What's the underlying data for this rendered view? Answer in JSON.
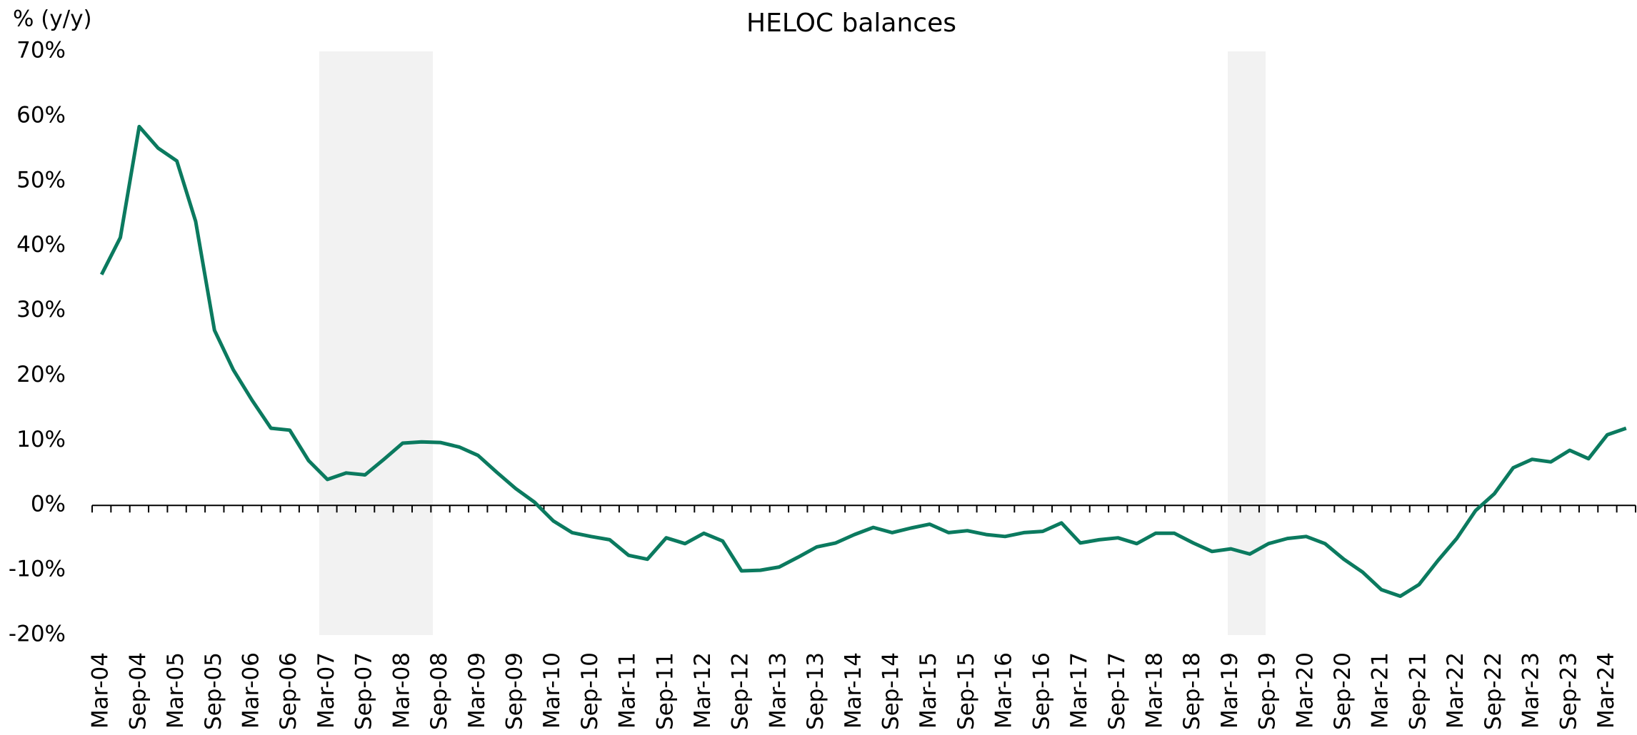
{
  "chart_data": {
    "type": "line",
    "title": "HELOC balances",
    "y_label": "% (y/y)",
    "categories": [
      "Mar-04",
      null,
      "Sep-04",
      null,
      "Mar-05",
      null,
      "Sep-05",
      null,
      "Mar-06",
      null,
      "Sep-06",
      null,
      "Mar-07",
      null,
      "Sep-07",
      null,
      "Mar-08",
      null,
      "Sep-08",
      null,
      "Mar-09",
      null,
      "Sep-09",
      null,
      "Mar-10",
      null,
      "Sep-10",
      null,
      "Mar-11",
      null,
      "Sep-11",
      null,
      "Mar-12",
      null,
      "Sep-12",
      null,
      "Mar-13",
      null,
      "Sep-13",
      null,
      "Mar-14",
      null,
      "Sep-14",
      null,
      "Mar-15",
      null,
      "Sep-15",
      null,
      "Mar-16",
      null,
      "Sep-16",
      null,
      "Mar-17",
      null,
      "Sep-17",
      null,
      "Mar-18",
      null,
      "Sep-18",
      null,
      "Mar-19",
      null,
      "Sep-19",
      null,
      "Mar-20",
      null,
      "Sep-20",
      null,
      "Mar-21",
      null,
      "Sep-21",
      null,
      "Mar-22",
      null,
      "Sep-22",
      null,
      "Mar-23",
      null,
      "Sep-23",
      null,
      "Mar-24",
      null
    ],
    "series": [
      {
        "name": "HELOC balances",
        "color": "#0b7a5f",
        "values": [
          35.6,
          41.3,
          58.4,
          55.1,
          53.1,
          43.8,
          27.0,
          20.9,
          16.2,
          11.9,
          11.6,
          6.9,
          4.0,
          5.0,
          4.7,
          7.1,
          9.6,
          9.8,
          9.7,
          9.0,
          7.7,
          5.1,
          2.6,
          0.5,
          -2.4,
          -4.2,
          -4.8,
          -5.3,
          -7.7,
          -8.3,
          -5.0,
          -5.9,
          -4.3,
          -5.5,
          -10.1,
          -10.0,
          -9.5,
          -8.0,
          -6.4,
          -5.8,
          -4.5,
          -3.4,
          -4.2,
          -3.5,
          -2.9,
          -4.2,
          -3.9,
          -4.5,
          -4.8,
          -4.2,
          -4.0,
          -2.7,
          -5.8,
          -5.3,
          -5.0,
          -5.9,
          -4.3,
          -4.3,
          -5.8,
          -7.1,
          -6.7,
          -7.5,
          -5.9,
          -5.1,
          -4.8,
          -5.9,
          -8.3,
          -10.3,
          -13.0,
          -14.0,
          -12.2,
          -8.5,
          -5.1,
          -0.8,
          1.8,
          5.8,
          7.1,
          6.7,
          8.5,
          7.2,
          10.9,
          11.9
        ]
      }
    ],
    "ylim": [
      -20,
      70
    ],
    "yticks": [
      {
        "value": -20,
        "label": "-20%"
      },
      {
        "value": -10,
        "label": "-10%"
      },
      {
        "value": 0,
        "label": "0%"
      },
      {
        "value": 10,
        "label": "10%"
      },
      {
        "value": 20,
        "label": "20%"
      },
      {
        "value": 30,
        "label": "30%"
      },
      {
        "value": 40,
        "label": "40%"
      },
      {
        "value": 50,
        "label": "50%"
      },
      {
        "value": 60,
        "label": "60%"
      },
      {
        "value": 70,
        "label": "70%"
      }
    ],
    "grid": false
  }
}
